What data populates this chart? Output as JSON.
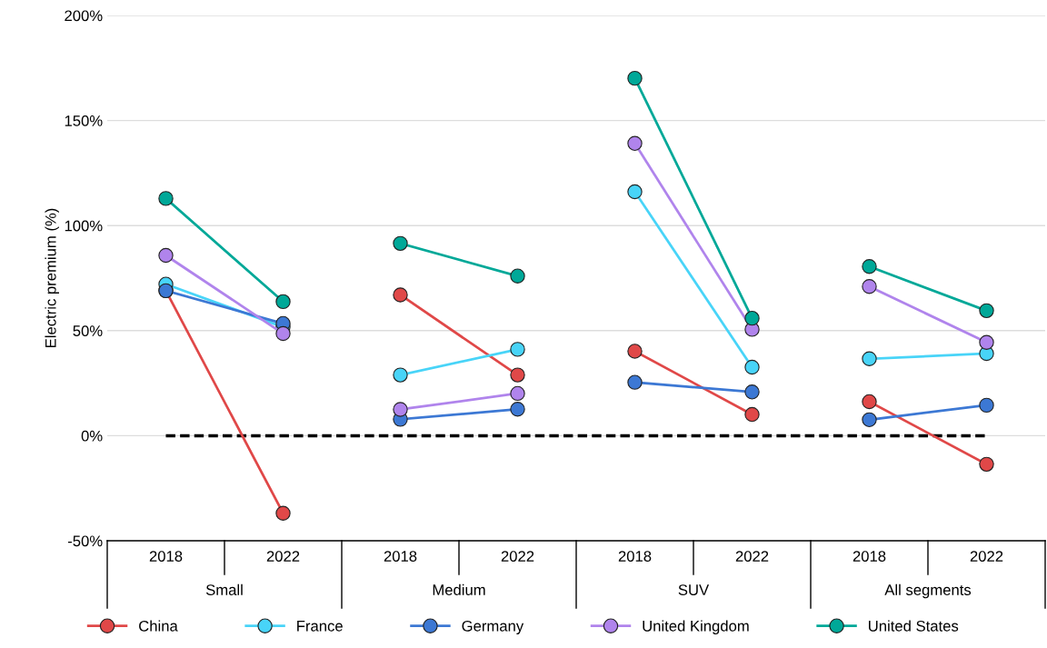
{
  "chart_data": {
    "type": "line",
    "ylabel": "Electric premium (%)",
    "categories": [
      "2018",
      "2022",
      "2018",
      "2022",
      "2018",
      "2022",
      "2018",
      "2022"
    ],
    "annotations": [
      "Small",
      "Medium",
      "SUV",
      "All segments"
    ],
    "series": [
      {
        "name": "China",
        "color": "#e04848",
        "values": [
          69,
          -36.9,
          67,
          28.9,
          40.2,
          10.1,
          16.2,
          -13.6
        ]
      },
      {
        "name": "France",
        "color": "#48d4f8",
        "values": [
          72.1,
          51.7,
          28.9,
          41.1,
          116.1,
          32.6,
          36.6,
          39.1
        ]
      },
      {
        "name": "Germany",
        "color": "#3c78d4",
        "values": [
          69,
          53.4,
          7.8,
          12.6,
          25.4,
          20.8,
          7.6,
          14.5
        ]
      },
      {
        "name": "United Kingdom",
        "color": "#b084ec",
        "values": [
          85.8,
          48.6,
          12.5,
          20.1,
          139.1,
          50.6,
          71,
          44.4
        ]
      },
      {
        "name": "United States",
        "color": "#00a898",
        "values": [
          112.9,
          63.8,
          91.5,
          76,
          170.1,
          55.9,
          80.5,
          59.5
        ]
      }
    ],
    "ylim": [
      -50,
      200
    ],
    "yticks": [
      {
        "value": -50,
        "label": "-50%"
      },
      {
        "value": 0,
        "label": "0%"
      },
      {
        "value": 50,
        "label": "50%"
      },
      {
        "value": 100,
        "label": "100%"
      },
      {
        "value": 150,
        "label": "150%"
      },
      {
        "value": 200,
        "label": "200%"
      }
    ],
    "ref_lines": [
      {
        "axis": "y",
        "value": 0,
        "color": "#000000",
        "line_style": "dashed"
      }
    ],
    "grid": "y",
    "legend": "bottom",
    "marker": "circle",
    "line_style": "solid"
  }
}
